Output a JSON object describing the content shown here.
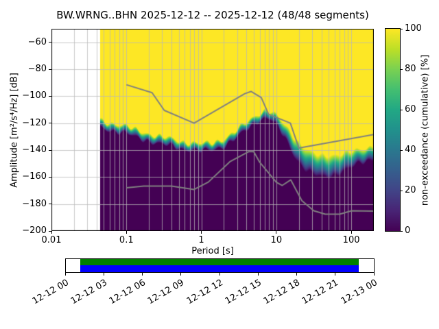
{
  "chart_data": {
    "type": "heatmap",
    "title": "BW.WRNG..BHN   2025-12-12 -- 2025-12-12  (48/48 segments)",
    "xlabel": "Period [s]",
    "ylabel": "Amplitude [m²/s⁴/Hz] [dB]",
    "x_scale": "log",
    "xlim": [
      0.01,
      200
    ],
    "ylim": [
      -200,
      -50
    ],
    "grid": true,
    "x_ticks": [
      {
        "value": 0.01,
        "label": "0.01"
      },
      {
        "value": 0.1,
        "label": "0.1"
      },
      {
        "value": 1,
        "label": "1"
      },
      {
        "value": 10,
        "label": "10"
      },
      {
        "value": 100,
        "label": "100"
      }
    ],
    "y_ticks": [
      {
        "value": -60,
        "label": "−60"
      },
      {
        "value": -80,
        "label": "−80"
      },
      {
        "value": -100,
        "label": "−100"
      },
      {
        "value": -120,
        "label": "−120"
      },
      {
        "value": -140,
        "label": "−140"
      },
      {
        "value": -160,
        "label": "−160"
      },
      {
        "value": -180,
        "label": "−180"
      },
      {
        "value": -200,
        "label": "−200"
      }
    ],
    "colorbar": {
      "label": "non-exceedance (cumulative) [%]",
      "cmap": "viridis",
      "ticks": [
        {
          "value": 0,
          "label": "0"
        },
        {
          "value": 20,
          "label": "20"
        },
        {
          "value": 40,
          "label": "40"
        },
        {
          "value": 60,
          "label": "60"
        },
        {
          "value": 80,
          "label": "80"
        },
        {
          "value": 100,
          "label": "100"
        }
      ]
    },
    "data_period_range": [
      0.045,
      200
    ],
    "distribution": {
      "periods": [
        0.045,
        0.06,
        0.08,
        0.1,
        0.13,
        0.17,
        0.22,
        0.3,
        0.4,
        0.55,
        0.75,
        1.0,
        1.4,
        2.0,
        2.8,
        4.0,
        5.5,
        7.0,
        8.5,
        10,
        13,
        17,
        22,
        30,
        40,
        55,
        75,
        100,
        140,
        200
      ],
      "median_db": [
        -120,
        -122,
        -124,
        -125,
        -127,
        -129,
        -131,
        -133,
        -134,
        -136,
        -137,
        -138,
        -137,
        -134,
        -129,
        -122,
        -116,
        -113,
        -114,
        -118,
        -126,
        -136,
        -144,
        -150,
        -152,
        -151,
        -149,
        -147,
        -144,
        -141
      ],
      "halfwidth_db": [
        3,
        3,
        3,
        3,
        3,
        3,
        3,
        3,
        3,
        3,
        3,
        3,
        3,
        3,
        3,
        3,
        3,
        3,
        3,
        4,
        5,
        7,
        8,
        8,
        8,
        8,
        7,
        6,
        5,
        5
      ]
    },
    "noise_models": {
      "high_periods": [
        0.1,
        0.22,
        0.32,
        0.8,
        3.8,
        4.6,
        6.3,
        7.9,
        15.4,
        20.0,
        200.0
      ],
      "high_db": [
        -91.5,
        -97.4,
        -110.5,
        -120.0,
        -98.1,
        -96.5,
        -101.0,
        -113.5,
        -120.0,
        -138.5,
        -128.4
      ],
      "low_periods": [
        0.1,
        0.17,
        0.4,
        0.8,
        1.24,
        2.4,
        4.3,
        5.0,
        6.0,
        10.0,
        12.0,
        15.6,
        21.9,
        31.6,
        45.0,
        70.0,
        101.0,
        200.0
      ],
      "low_db": [
        -168.0,
        -166.7,
        -166.7,
        -169.2,
        -163.7,
        -148.6,
        -141.1,
        -141.1,
        -149.0,
        -163.8,
        -166.2,
        -162.1,
        -177.5,
        -185.0,
        -187.5,
        -187.5,
        -185.0,
        -185.3
      ]
    },
    "timeline": {
      "tick_labels": [
        "12-12 00",
        "12-12 03",
        "12-12 06",
        "12-12 09",
        "12-12 12",
        "12-12 15",
        "12-12 18",
        "12-12 21",
        "12-13 00"
      ],
      "coverage_start_frac": 0.047,
      "coverage_end_frac": 0.951
    },
    "colors": {
      "viridis": [
        "#440154",
        "#482475",
        "#414487",
        "#355f8d",
        "#2a788e",
        "#21918c",
        "#22a884",
        "#44bf70",
        "#7ad151",
        "#bddf26",
        "#fde725"
      ],
      "noise_model_line": "#808080",
      "grid_line": "#b8b8b8",
      "coverage_green": "#008000",
      "coverage_blue": "#0000ff",
      "background": "#ffffff",
      "dark_fill": "#440154",
      "yellow_fill": "#fde725"
    }
  }
}
